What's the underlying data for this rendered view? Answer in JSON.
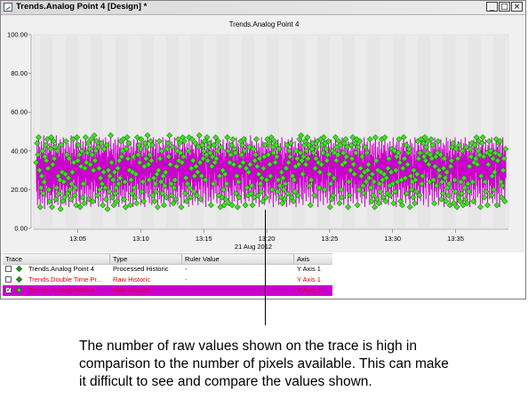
{
  "window": {
    "title": "Trends.Analog Point 4 [Design] *",
    "controls": {
      "minimize": "_",
      "restore": "□",
      "close": "×"
    }
  },
  "chart_data": {
    "type": "line",
    "title": "Trends.Analog Point 4",
    "xlabel": "21 Aug 2012",
    "ylabel": "",
    "ylim": [
      0,
      100
    ],
    "y_ticks": [
      "0.00",
      "20.00",
      "40.00",
      "60.00",
      "80.00",
      "100.00"
    ],
    "x_ticks": [
      "13:05",
      "13:10",
      "13:15",
      "13:20",
      "13:25",
      "13:30",
      "13:35"
    ],
    "x_tick_minutes": [
      5,
      10,
      15,
      20,
      25,
      30,
      35
    ],
    "x_range_minutes": [
      1.5,
      39.2
    ],
    "series": [
      {
        "name": "Trends.Analog Point 4",
        "color": "#cc00cc",
        "marker_color": "#44dd22",
        "x_start_minute": 1.7,
        "x_end_minute": 39.0,
        "values": [
          34,
          19,
          44,
          12,
          38,
          25,
          47,
          15,
          30,
          42,
          11,
          36,
          21,
          45,
          27,
          13,
          40,
          33,
          18,
          48,
          24,
          10,
          37,
          29,
          43,
          16,
          35,
          22,
          46,
          12,
          31,
          39,
          20,
          44,
          14,
          28,
          41,
          17,
          47,
          26,
          11,
          38,
          33,
          19,
          45,
          23,
          36,
          13,
          42,
          30,
          15,
          48,
          21,
          34,
          40,
          12,
          27,
          44,
          18,
          37,
          25,
          46,
          10,
          32,
          43,
          20,
          29,
          39,
          14,
          47,
          24,
          35,
          16,
          41,
          28,
          12,
          45,
          22,
          38,
          31,
          18,
          44,
          26,
          11,
          36,
          42,
          20,
          33,
          15,
          48,
          23,
          39,
          29,
          13,
          46,
          25,
          34,
          41,
          17,
          37,
          21,
          44,
          12,
          30,
          47,
          19,
          35,
          27,
          43,
          14,
          38,
          24,
          11,
          46,
          32,
          20,
          40,
          28,
          16,
          45,
          23,
          36,
          13,
          42,
          31,
          18,
          47,
          26,
          34,
          12,
          39,
          22,
          44,
          29,
          15,
          37,
          41,
          20,
          33,
          11,
          46,
          24,
          38,
          27,
          14,
          43,
          30,
          19,
          48,
          25,
          35,
          13,
          40,
          22,
          45,
          28,
          17,
          36,
          42,
          11,
          31,
          47,
          20,
          38,
          26,
          14,
          44,
          33,
          23,
          39,
          12,
          46,
          29,
          18,
          41,
          35,
          21,
          47,
          15,
          32,
          43,
          24,
          10,
          37,
          30,
          45,
          19,
          40,
          27,
          13,
          48,
          22,
          34,
          41,
          16,
          38,
          25,
          44,
          12,
          36,
          29,
          46,
          18,
          33,
          21,
          43,
          14,
          39,
          31,
          47,
          23,
          11,
          35,
          42,
          26,
          17,
          45,
          28,
          37,
          13,
          40,
          20,
          46,
          32,
          15,
          38,
          24,
          43,
          11,
          34,
          41,
          19,
          47,
          27,
          36,
          14,
          44,
          22,
          30,
          39,
          12,
          45,
          25,
          33,
          18,
          42,
          29,
          11,
          37,
          46,
          21,
          35,
          16,
          40,
          28,
          44,
          13,
          31,
          47,
          23,
          38,
          20,
          43,
          15,
          34,
          26,
          41,
          12,
          46,
          30,
          19,
          37,
          24,
          45,
          14,
          39,
          32,
          11,
          44,
          27,
          36,
          18,
          42,
          22,
          48,
          16,
          33,
          40,
          25,
          13,
          38,
          29,
          45,
          20,
          35,
          12,
          43,
          31,
          17,
          47,
          26,
          37,
          14,
          41,
          23,
          46,
          19,
          34,
          28,
          44,
          11,
          39,
          30,
          21,
          45,
          15,
          36,
          42,
          24,
          13,
          40,
          33,
          18,
          47,
          27,
          38,
          12,
          43,
          22,
          35,
          29,
          46,
          16,
          31,
          41,
          20,
          44,
          14,
          37,
          26,
          48,
          11,
          33,
          39,
          23,
          45,
          17,
          30,
          42,
          28,
          13,
          36,
          21,
          47,
          25,
          38,
          15,
          43,
          32,
          19,
          40,
          12,
          46,
          29,
          35,
          22,
          44,
          16,
          39,
          27,
          11,
          41,
          34,
          20,
          47,
          24,
          37,
          13,
          45,
          30,
          18,
          42,
          26,
          36,
          14,
          44,
          23,
          33,
          40,
          11,
          47,
          28,
          21,
          38,
          16,
          43,
          31,
          25,
          46,
          12,
          35,
          41,
          19,
          39,
          27,
          14,
          44,
          22,
          32,
          45,
          17,
          37,
          29,
          12,
          42,
          24,
          48,
          20,
          34,
          39,
          15,
          46,
          27,
          31,
          43,
          13,
          36,
          22,
          40,
          18,
          45,
          30,
          25,
          11,
          38,
          33,
          47,
          21,
          35,
          14,
          42,
          28,
          44,
          16,
          39,
          26,
          12,
          46,
          32,
          20,
          37,
          41,
          23,
          15,
          43,
          29,
          34,
          18,
          47,
          25,
          36,
          13,
          40,
          22,
          45,
          31,
          17,
          38,
          27,
          44,
          11,
          33,
          42,
          24,
          16,
          39,
          30,
          46,
          20,
          35,
          12,
          41,
          28,
          37,
          15,
          44,
          23,
          31,
          47,
          19,
          40,
          26,
          13,
          45,
          34,
          21,
          38,
          17,
          43,
          29,
          12,
          36,
          46,
          25,
          33,
          14,
          41,
          22,
          39,
          30,
          18,
          47,
          27,
          35,
          11,
          44,
          24,
          42,
          16,
          37,
          32,
          20,
          45,
          13,
          38,
          28,
          43,
          19,
          34,
          26,
          46,
          15,
          40,
          23,
          12,
          47,
          31,
          36,
          21,
          44,
          17,
          39,
          29,
          14,
          42,
          25,
          33,
          48,
          18,
          37,
          22,
          45,
          12,
          30,
          41,
          27,
          16,
          43,
          35,
          20,
          38,
          13,
          46,
          24,
          32,
          40,
          17,
          44,
          28,
          11,
          36,
          42,
          23,
          34,
          19,
          47,
          26,
          39,
          14,
          45,
          31,
          21,
          37,
          12,
          43,
          29,
          16,
          41,
          25,
          35,
          46,
          18,
          38,
          22,
          44,
          13,
          33,
          40,
          27,
          15,
          47,
          30,
          20,
          36,
          42,
          11,
          39,
          24,
          45,
          17,
          34,
          28,
          43,
          14,
          37,
          31,
          19,
          46,
          25,
          12,
          41,
          35,
          22,
          44,
          16,
          38,
          29,
          47,
          13,
          33,
          26,
          42,
          20,
          36,
          15,
          45,
          23,
          39,
          31,
          11,
          43,
          28,
          18,
          46,
          34,
          24,
          40,
          12,
          37,
          30,
          44,
          21,
          16,
          47,
          27,
          35,
          14,
          42,
          25,
          38,
          19,
          45,
          32,
          11,
          40,
          23,
          36,
          29,
          17,
          44,
          33,
          13,
          46,
          26,
          39,
          21,
          48,
          15,
          35,
          42,
          28,
          12,
          37,
          31,
          43,
          18,
          45,
          24,
          33,
          14,
          40,
          27,
          47,
          20,
          36,
          16,
          43,
          30,
          22,
          38,
          12,
          46,
          25,
          34,
          41,
          19,
          44,
          13,
          39,
          28,
          17,
          47,
          31,
          23,
          36,
          15,
          42,
          26,
          45,
          11,
          34,
          40,
          21,
          37,
          29,
          14,
          46,
          24,
          33,
          18,
          43,
          30,
          39,
          12,
          47,
          27,
          20,
          36,
          44,
          16,
          41,
          25,
          35,
          13,
          38,
          32,
          45,
          19,
          28,
          42,
          11,
          37,
          23,
          46,
          15,
          34,
          40,
          29,
          17,
          44,
          26,
          12,
          39,
          31,
          47,
          21,
          35,
          14,
          42,
          24,
          38,
          18,
          45,
          30,
          13,
          36,
          43,
          27,
          20,
          41,
          16,
          47,
          33,
          25,
          39,
          12,
          44,
          22,
          34,
          15,
          46,
          28,
          37,
          19,
          42,
          31,
          11,
          45,
          24,
          38,
          17,
          40,
          30,
          14,
          43,
          26,
          36,
          21,
          47,
          13,
          33,
          41,
          28,
          18,
          44,
          23,
          39,
          15,
          46,
          32,
          12,
          35,
          42,
          25,
          20,
          38,
          45,
          16,
          31,
          40,
          27,
          13,
          37,
          44,
          22,
          34,
          18,
          47,
          29,
          11,
          42,
          36,
          24,
          15,
          39,
          45,
          30,
          19,
          33,
          41,
          26,
          12,
          46,
          35,
          21,
          38,
          14,
          43,
          28,
          37,
          17,
          44,
          24,
          32,
          11,
          40,
          47,
          20,
          35,
          27,
          15,
          42,
          30,
          38,
          13,
          45,
          23,
          36,
          19,
          41,
          29,
          12,
          46,
          33,
          25,
          39,
          16,
          43,
          28,
          21,
          47,
          34,
          14,
          40,
          26,
          37,
          18,
          44,
          31,
          12,
          36,
          42,
          22,
          45,
          17,
          38,
          29,
          15,
          41,
          33,
          23,
          47,
          13,
          35,
          40,
          27,
          19,
          43,
          30,
          11,
          37,
          45,
          24,
          16,
          39,
          32,
          46,
          20,
          34,
          28,
          14,
          42,
          25,
          38,
          12,
          44,
          31,
          21,
          47,
          17,
          36,
          40,
          26,
          13,
          43,
          29,
          18,
          45,
          33,
          22,
          39,
          15,
          41,
          35,
          11,
          46,
          27,
          37,
          20,
          44,
          24,
          32,
          16,
          42,
          30,
          38,
          13,
          47,
          25,
          35,
          19,
          40,
          28,
          12,
          45,
          22,
          36,
          43,
          17,
          31,
          39,
          14,
          46,
          34,
          23,
          41,
          27,
          18,
          44,
          12,
          37,
          30,
          47,
          21,
          35,
          15,
          42,
          26,
          39,
          29,
          45,
          11,
          33,
          40,
          24,
          17,
          38,
          31,
          46,
          20,
          36,
          14,
          43,
          28,
          25,
          41,
          13,
          47,
          32,
          19,
          37,
          44,
          22,
          16,
          39,
          34,
          45,
          12,
          30,
          42,
          27,
          20,
          38,
          46,
          15,
          35,
          24,
          41,
          18,
          44,
          31,
          11,
          36,
          43,
          26,
          33,
          14,
          47,
          29,
          39,
          21,
          45,
          17,
          37,
          23,
          40,
          12,
          46,
          32,
          28,
          35,
          15,
          42,
          20,
          44,
          30,
          13,
          38,
          25,
          47,
          19,
          34,
          41,
          22,
          11,
          39,
          36,
          45,
          16,
          27,
          43,
          31,
          14,
          37,
          24,
          46,
          18,
          33,
          40,
          29,
          12,
          44,
          26,
          38,
          21,
          47,
          15,
          35,
          42,
          28,
          13,
          40,
          23,
          36,
          19,
          45,
          32,
          11,
          41,
          27,
          37,
          17,
          44,
          30,
          24,
          39,
          14,
          46,
          34,
          20,
          43,
          12,
          36,
          29,
          47,
          22,
          33,
          16,
          40,
          25,
          45,
          18,
          38,
          31,
          11,
          42,
          27,
          35,
          44,
          13,
          47,
          21,
          37,
          30,
          16,
          41,
          24,
          46,
          19,
          34,
          39,
          28,
          12,
          43,
          33,
          25,
          45,
          15,
          38,
          22,
          40,
          31,
          17,
          47,
          27,
          13,
          36,
          44,
          20,
          41,
          29,
          15,
          39,
          33,
          46,
          23,
          12,
          42,
          35,
          18,
          44,
          27,
          38,
          11,
          45,
          31,
          24,
          37,
          16,
          43,
          22,
          47,
          30,
          20,
          36,
          40,
          14,
          34,
          41,
          26
        ],
        "marker_count": 520
      }
    ]
  },
  "trace_table": {
    "headers": [
      "Trace",
      "Type",
      "Ruler Value",
      "Axis"
    ],
    "rows": [
      {
        "checked": "",
        "name": "Trends.Analog Point 4",
        "type": "Processed Historic",
        "ruler": "-",
        "axis": "Y Axis 1",
        "color": "#000000",
        "marker_color": "#2a9a2a",
        "selected": false
      },
      {
        "checked": "",
        "name": "Trends.Double Time Pr...",
        "type": "Raw Historic",
        "ruler": "-",
        "axis": "Y Axis 1",
        "color": "#e00000",
        "marker_color": "#2a9a2a",
        "selected": false
      },
      {
        "checked": "✓",
        "name": "Trends.Analog Point 4",
        "type": "Raw Historic",
        "ruler": "-",
        "axis": "Y Axis 1",
        "color": "#e00000",
        "marker_color": "#44dd22",
        "selected": true
      }
    ],
    "selected_row_bg": "#cc00cc"
  },
  "annotation": {
    "text": "The number of raw values shown on the trace is high in comparison to the number of pixels available. This can make it difficult to see and compare the values shown."
  }
}
